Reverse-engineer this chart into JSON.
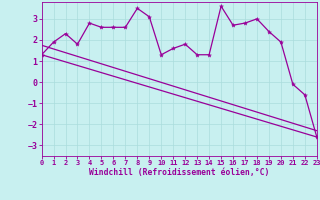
{
  "xlabel": "Windchill (Refroidissement éolien,°C)",
  "background_color": "#c8f0f0",
  "line_color": "#990099",
  "grid_color": "#aadddd",
  "xmin": 0,
  "xmax": 23,
  "ymin": -3.5,
  "ymax": 3.8,
  "x_data": [
    0,
    1,
    2,
    3,
    4,
    5,
    6,
    7,
    8,
    9,
    10,
    11,
    12,
    13,
    14,
    15,
    16,
    17,
    18,
    19,
    20,
    21,
    22,
    23
  ],
  "y_data": [
    1.3,
    1.9,
    2.3,
    1.8,
    2.8,
    2.6,
    2.6,
    2.6,
    3.5,
    3.1,
    1.3,
    1.6,
    1.8,
    1.3,
    1.3,
    3.6,
    2.7,
    2.8,
    3.0,
    2.4,
    1.9,
    -0.1,
    -0.6,
    -2.6
  ],
  "trend1_x": [
    0,
    23
  ],
  "trend1_y": [
    1.3,
    -2.6
  ],
  "trend2_x": [
    0,
    23
  ],
  "trend2_y": [
    1.75,
    -2.3
  ],
  "yticks": [
    -3,
    -2,
    -1,
    0,
    1,
    2,
    3
  ],
  "xticks": [
    0,
    1,
    2,
    3,
    4,
    5,
    6,
    7,
    8,
    9,
    10,
    11,
    12,
    13,
    14,
    15,
    16,
    17,
    18,
    19,
    20,
    21,
    22,
    23
  ]
}
